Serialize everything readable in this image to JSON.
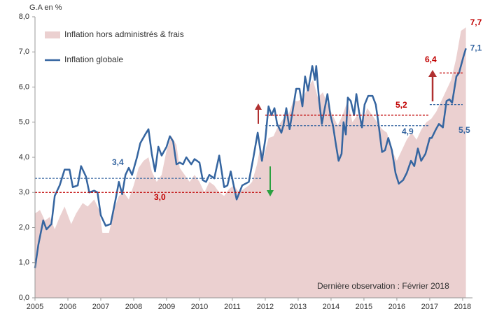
{
  "chart_data": {
    "type": "line",
    "y_label": "G.A en %",
    "note": "Dernière observation : Février 2018",
    "xlim": [
      2005,
      2018.3
    ],
    "xticks": [
      2005,
      2006,
      2007,
      2008,
      2009,
      2010,
      2011,
      2012,
      2013,
      2014,
      2015,
      2016,
      2017,
      2018
    ],
    "ylim": [
      0,
      8
    ],
    "yticks": [
      {
        "value": 0,
        "label": "0,0"
      },
      {
        "value": 1,
        "label": "1,0"
      },
      {
        "value": 2,
        "label": "2,0"
      },
      {
        "value": 3,
        "label": "3,0"
      },
      {
        "value": 4,
        "label": "4,0"
      },
      {
        "value": 5,
        "label": "5,0"
      },
      {
        "value": 6,
        "label": "6,0"
      },
      {
        "value": 7,
        "label": "7,0"
      },
      {
        "value": 8,
        "label": "8,0"
      }
    ],
    "grid": false,
    "series": [
      {
        "name": "Inflation hors administrés & frais",
        "kind": "area",
        "color": "#ebd0d0",
        "end_label": "7,7",
        "end_label_color": "#c00000",
        "x": [
          2005.0,
          2005.15,
          2005.3,
          2005.45,
          2005.6,
          2005.75,
          2005.9,
          2006.1,
          2006.25,
          2006.45,
          2006.6,
          2006.8,
          2006.95,
          2007.05,
          2007.25,
          2007.4,
          2007.55,
          2007.7,
          2007.85,
          2008.0,
          2008.15,
          2008.3,
          2008.45,
          2008.55,
          2008.7,
          2008.85,
          2009.0,
          2009.15,
          2009.3,
          2009.4,
          2009.55,
          2009.7,
          2009.85,
          2010.0,
          2010.15,
          2010.3,
          2010.45,
          2010.6,
          2010.75,
          2010.9,
          2011.05,
          2011.2,
          2011.35,
          2011.5,
          2011.6,
          2011.75,
          2011.85,
          2011.95,
          2012.1,
          2012.25,
          2012.4,
          2012.55,
          2012.7,
          2012.85,
          2013.0,
          2013.15,
          2013.3,
          2013.45,
          2013.6,
          2013.75,
          2013.9,
          2014.05,
          2014.2,
          2014.35,
          2014.5,
          2014.65,
          2014.8,
          2014.95,
          2015.1,
          2015.25,
          2015.4,
          2015.55,
          2015.7,
          2015.85,
          2016.0,
          2016.15,
          2016.3,
          2016.45,
          2016.6,
          2016.75,
          2016.9,
          2017.05,
          2017.2,
          2017.35,
          2017.5,
          2017.65,
          2017.8,
          2017.95,
          2018.1
        ],
        "values": [
          2.4,
          2.5,
          2.2,
          2.3,
          1.95,
          2.3,
          2.6,
          2.1,
          2.4,
          2.7,
          2.6,
          2.8,
          2.5,
          1.85,
          1.85,
          2.5,
          2.9,
          3.0,
          2.8,
          3.2,
          3.7,
          3.9,
          4.0,
          3.6,
          3.3,
          3.5,
          4.2,
          4.6,
          4.35,
          3.7,
          3.5,
          3.3,
          3.5,
          3.3,
          3.0,
          3.3,
          3.2,
          3.0,
          2.9,
          3.1,
          3.2,
          3.0,
          3.1,
          3.2,
          3.3,
          3.8,
          4.3,
          4.0,
          4.55,
          4.6,
          4.9,
          5.1,
          5.2,
          5.6,
          5.6,
          5.7,
          6.0,
          6.2,
          5.7,
          5.85,
          5.5,
          5.2,
          4.9,
          5.2,
          5.6,
          5.0,
          5.2,
          5.0,
          5.4,
          5.2,
          5.0,
          4.8,
          4.7,
          4.2,
          3.9,
          4.2,
          4.5,
          4.7,
          4.5,
          4.8,
          5.0,
          5.1,
          5.3,
          5.6,
          5.9,
          6.2,
          6.8,
          7.6,
          7.7
        ]
      },
      {
        "name": "Inflation globale",
        "kind": "line",
        "color": "#3565a0",
        "end_label": "7,1",
        "end_label_color": "#3565a0",
        "x": [
          2005.0,
          2005.1,
          2005.25,
          2005.35,
          2005.5,
          2005.6,
          2005.75,
          2005.9,
          2006.05,
          2006.15,
          2006.3,
          2006.4,
          2006.55,
          2006.65,
          2006.8,
          2006.9,
          2007.0,
          2007.15,
          2007.3,
          2007.45,
          2007.55,
          2007.65,
          2007.75,
          2007.85,
          2007.95,
          2008.1,
          2008.2,
          2008.35,
          2008.45,
          2008.55,
          2008.65,
          2008.75,
          2008.85,
          2009.0,
          2009.1,
          2009.2,
          2009.3,
          2009.4,
          2009.5,
          2009.6,
          2009.75,
          2009.85,
          2010.0,
          2010.1,
          2010.2,
          2010.3,
          2010.45,
          2010.6,
          2010.75,
          2010.85,
          2010.95,
          2011.13,
          2011.3,
          2011.5,
          2011.64,
          2011.77,
          2011.9,
          2012.0,
          2012.1,
          2012.19,
          2012.28,
          2012.36,
          2012.49,
          2012.55,
          2012.64,
          2012.74,
          2012.83,
          2012.94,
          2013.04,
          2013.13,
          2013.21,
          2013.3,
          2013.43,
          2013.51,
          2013.55,
          2013.64,
          2013.72,
          2013.81,
          2013.89,
          2013.98,
          2014.06,
          2014.15,
          2014.23,
          2014.32,
          2014.38,
          2014.45,
          2014.51,
          2014.6,
          2014.7,
          2014.77,
          2014.85,
          2014.94,
          2015.02,
          2015.13,
          2015.26,
          2015.36,
          2015.45,
          2015.55,
          2015.64,
          2015.74,
          2015.85,
          2015.96,
          2016.06,
          2016.19,
          2016.3,
          2016.43,
          2016.53,
          2016.64,
          2016.74,
          2016.87,
          2017.0,
          2017.06,
          2017.19,
          2017.28,
          2017.4,
          2017.51,
          2017.6,
          2017.68,
          2017.81,
          2017.89,
          2018.02,
          2018.1
        ],
        "values": [
          0.85,
          1.5,
          2.2,
          1.95,
          2.1,
          2.9,
          3.2,
          3.65,
          3.65,
          3.15,
          3.2,
          3.75,
          3.45,
          3.0,
          3.05,
          3.0,
          2.35,
          2.05,
          2.1,
          2.8,
          3.3,
          2.95,
          3.5,
          3.7,
          3.5,
          4.0,
          4.4,
          4.65,
          4.8,
          4.1,
          3.6,
          4.3,
          4.05,
          4.3,
          4.6,
          4.45,
          3.8,
          3.85,
          3.8,
          4.0,
          3.8,
          3.95,
          3.85,
          3.35,
          3.3,
          3.5,
          3.4,
          4.05,
          3.15,
          3.2,
          3.6,
          2.8,
          3.2,
          3.3,
          4.0,
          4.7,
          3.9,
          4.5,
          5.45,
          5.2,
          5.4,
          4.95,
          4.7,
          4.9,
          5.4,
          4.8,
          5.3,
          5.95,
          5.95,
          5.45,
          6.3,
          5.9,
          6.6,
          6.2,
          6.6,
          5.6,
          4.95,
          5.4,
          5.8,
          5.2,
          4.9,
          4.35,
          3.9,
          4.1,
          5.0,
          4.65,
          5.7,
          5.6,
          5.2,
          5.8,
          5.3,
          4.85,
          5.5,
          5.75,
          5.75,
          5.5,
          4.9,
          4.15,
          4.2,
          4.55,
          4.2,
          3.55,
          3.25,
          3.35,
          3.55,
          3.9,
          3.75,
          4.25,
          3.9,
          4.1,
          4.55,
          4.55,
          4.8,
          4.95,
          4.85,
          5.6,
          5.65,
          5.55,
          6.3,
          6.4,
          6.85,
          7.1
        ]
      }
    ],
    "reference_lines": [
      {
        "label": "3,4",
        "value": 3.4,
        "color": "#3565a0",
        "from": 2005,
        "to": 2011.9
      },
      {
        "label": "3,0",
        "value": 3.0,
        "color": "#c00000",
        "from": 2005,
        "to": 2011.9
      },
      {
        "label": "5,2",
        "value": 5.2,
        "color": "#c00000",
        "from": 2012,
        "to": 2017
      },
      {
        "label": "4,9",
        "value": 4.9,
        "color": "#3565a0",
        "from": 2012,
        "to": 2017
      },
      {
        "label": "6,4",
        "value": 6.4,
        "color": "#c00000",
        "from": 2017.3,
        "to": 2018
      },
      {
        "label": "5,5",
        "value": 5.5,
        "color": "#3565a0",
        "from": 2017,
        "to": 2018
      }
    ]
  }
}
